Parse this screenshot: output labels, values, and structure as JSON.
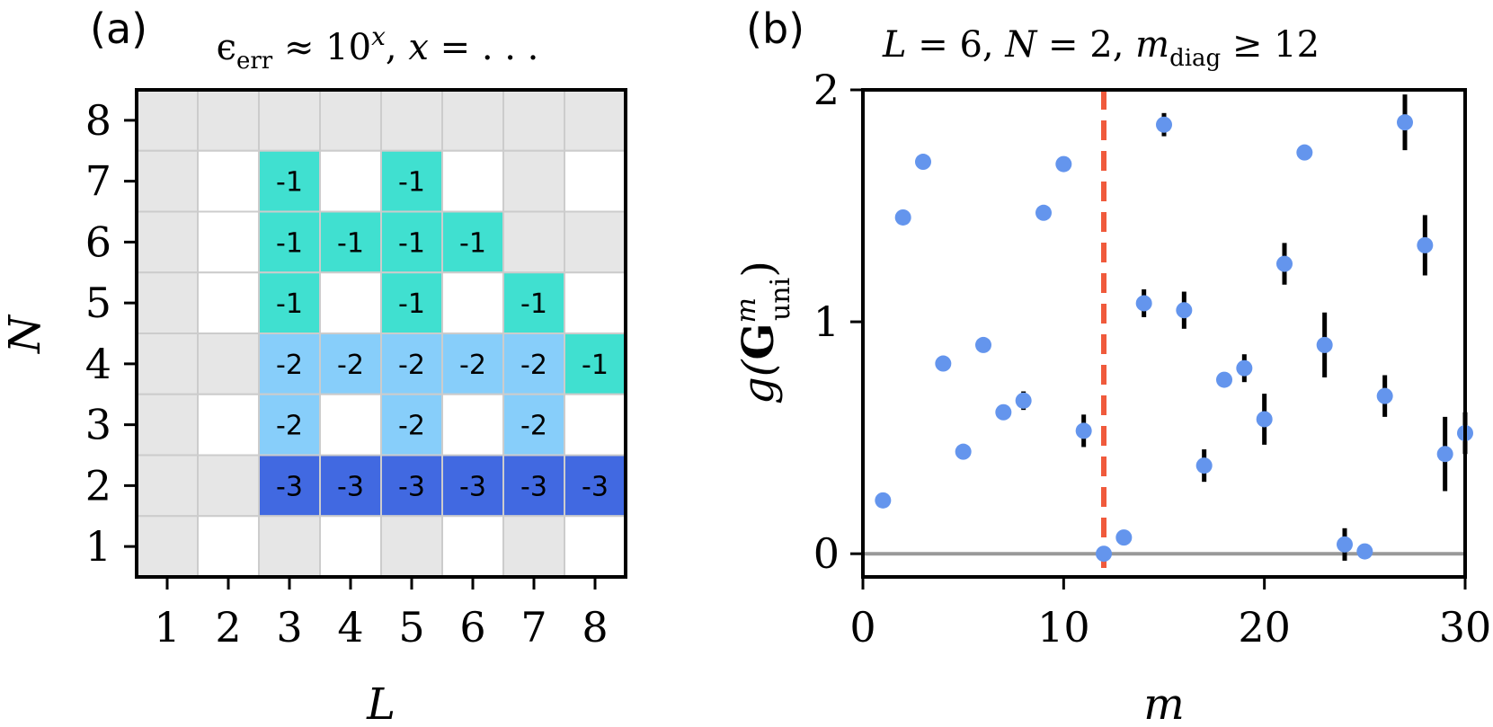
{
  "chart_data": [
    {
      "panel": "(a)",
      "type": "heatmap",
      "title": "ϵ_err ≈ 10^x, x = . . .",
      "xlabel": "L",
      "ylabel": "N",
      "x_ticks": [
        "1",
        "2",
        "3",
        "4",
        "5",
        "6",
        "7",
        "8"
      ],
      "y_ticks": [
        "1",
        "2",
        "3",
        "4",
        "5",
        "6",
        "7",
        "8"
      ],
      "colors": {
        "-1": "#40e0d0",
        "-2": "#87cefa",
        "-3": "#4169e1",
        "none_gray": "#e6e6e6",
        "none_white": "#ffffff",
        "grid": "#cccccc"
      },
      "rows_top_to_bottom_N8_to_N1": [
        [
          "g",
          "g",
          "g",
          "g",
          "g",
          "g",
          "g",
          "g"
        ],
        [
          "g",
          "w",
          "-1",
          "w",
          "-1",
          "w",
          "g",
          "w"
        ],
        [
          "g",
          "w",
          "-1",
          "-1",
          "-1",
          "-1",
          "g",
          "g"
        ],
        [
          "g",
          "w",
          "-1",
          "w",
          "-1",
          "w",
          "-1",
          "w"
        ],
        [
          "g",
          "g",
          "-2",
          "-2",
          "-2",
          "-2",
          "-2",
          "-1"
        ],
        [
          "g",
          "w",
          "-2",
          "w",
          "-2",
          "w",
          "-2",
          "w"
        ],
        [
          "g",
          "g",
          "-3",
          "-3",
          "-3",
          "-3",
          "-3",
          "-3"
        ],
        [
          "g",
          "w",
          "g",
          "w",
          "g",
          "w",
          "g",
          "w"
        ]
      ]
    },
    {
      "panel": "(b)",
      "type": "scatter",
      "title": "L = 6, N = 2,    m_diag ≥ 12",
      "xlabel": "m",
      "ylabel": "g(G^m_uni)",
      "xlim": [
        0,
        30
      ],
      "ylim": [
        -0.1,
        2
      ],
      "x_ticks": [
        "0",
        "10",
        "20",
        "30"
      ],
      "y_ticks": [
        "0",
        "1",
        "2"
      ],
      "vline_x": 12,
      "hline_y": 0,
      "colors": {
        "points": "#6495ed",
        "errorbars": "#000000",
        "vline": "#f05a3c",
        "hline": "#999999"
      },
      "points": [
        {
          "m": 1,
          "g": 0.23,
          "err": 0
        },
        {
          "m": 2,
          "g": 1.45,
          "err": 0
        },
        {
          "m": 3,
          "g": 1.69,
          "err": 0
        },
        {
          "m": 4,
          "g": 0.82,
          "err": 0
        },
        {
          "m": 5,
          "g": 0.44,
          "err": 0
        },
        {
          "m": 6,
          "g": 0.9,
          "err": 0
        },
        {
          "m": 7,
          "g": 0.61,
          "err": 0.02
        },
        {
          "m": 8,
          "g": 0.66,
          "err": 0.04
        },
        {
          "m": 9,
          "g": 1.47,
          "err": 0.03
        },
        {
          "m": 10,
          "g": 1.68,
          "err": 0
        },
        {
          "m": 11,
          "g": 0.53,
          "err": 0.07
        },
        {
          "m": 12,
          "g": 0.0,
          "err": 0
        },
        {
          "m": 13,
          "g": 0.07,
          "err": 0
        },
        {
          "m": 14,
          "g": 1.08,
          "err": 0.06
        },
        {
          "m": 15,
          "g": 1.85,
          "err": 0.05
        },
        {
          "m": 16,
          "g": 1.05,
          "err": 0.08
        },
        {
          "m": 17,
          "g": 0.38,
          "err": 0.07
        },
        {
          "m": 18,
          "g": 0.75,
          "err": 0.02
        },
        {
          "m": 19,
          "g": 0.8,
          "err": 0.06
        },
        {
          "m": 20,
          "g": 0.58,
          "err": 0.11
        },
        {
          "m": 21,
          "g": 1.25,
          "err": 0.09
        },
        {
          "m": 22,
          "g": 1.73,
          "err": 0.03
        },
        {
          "m": 23,
          "g": 0.9,
          "err": 0.14
        },
        {
          "m": 24,
          "g": 0.04,
          "err": 0.07
        },
        {
          "m": 25,
          "g": 0.01,
          "err": 0
        },
        {
          "m": 26,
          "g": 0.68,
          "err": 0.09
        },
        {
          "m": 27,
          "g": 1.86,
          "err": 0.12
        },
        {
          "m": 28,
          "g": 1.33,
          "err": 0.13
        },
        {
          "m": 29,
          "g": 0.43,
          "err": 0.16
        },
        {
          "m": 30,
          "g": 0.52,
          "err": 0.09
        }
      ]
    }
  ]
}
